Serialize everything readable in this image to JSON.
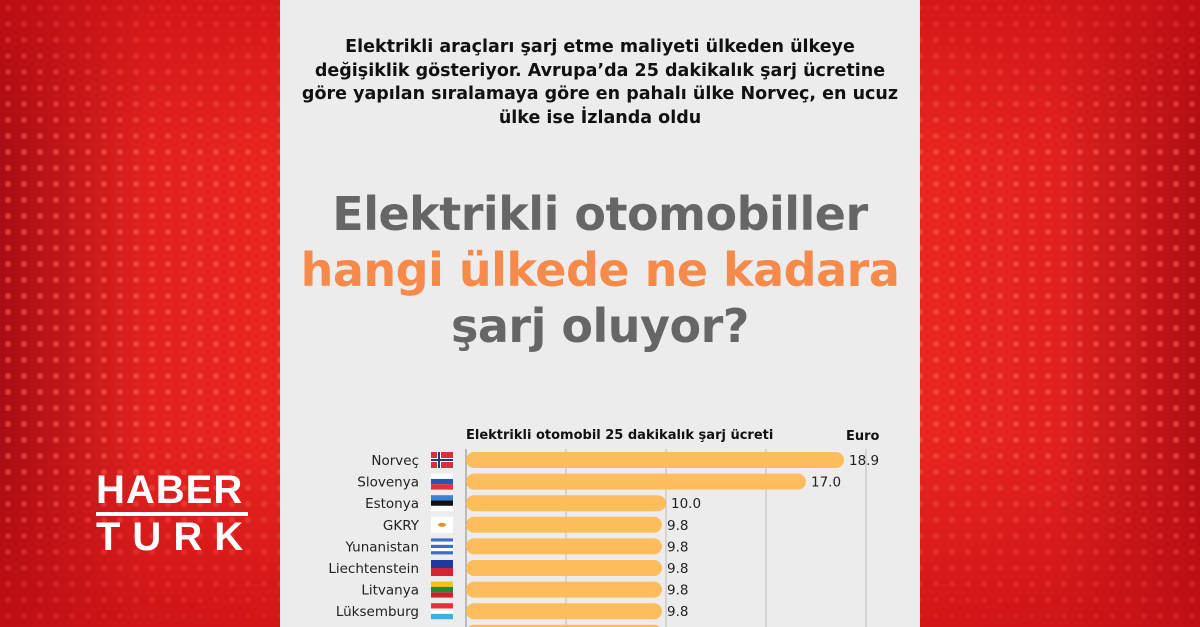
{
  "intro_text": "Elektrikli araçları şarj etme maliyeti ülkeden ülkeye değişiklik gösteriyor. Avrupa’da 25 dakikalık şarj ücretine göre yapılan sıralamaya göre en pahalı ülke Norveç, en ucuz ülke ise İzlanda oldu",
  "headline": {
    "part1": "Elektrikli otomobiller ",
    "highlight": "hangi ülkede ne kadara",
    "part2": " şarj oluyor?"
  },
  "logo": {
    "line1": "HABER",
    "line2": "TURK"
  },
  "colors": {
    "bar": "#fdbd5c",
    "highlight": "#f58a4a",
    "background": "#e8261f",
    "panel": "#ececec"
  },
  "chart_data": {
    "type": "bar",
    "orientation": "horizontal",
    "title": "Elektrikli otomobil 25 dakikalık şarj ücreti",
    "unit": "Euro",
    "categories": [
      "Norveç",
      "Slovenya",
      "Estonya",
      "GKRY",
      "Yunanistan",
      "Liechtenstein",
      "Litvanya",
      "Lüksemburg"
    ],
    "flags": [
      "norway-flag",
      "slovenia-flag",
      "estonia-flag",
      "cyprus-flag",
      "greece-flag",
      "liechtenstein-flag",
      "lithuania-flag",
      "luxembourg-flag"
    ],
    "values": [
      18.9,
      17.0,
      10.0,
      9.8,
      9.8,
      9.8,
      9.8,
      9.8
    ],
    "value_labels": [
      "18.9",
      "17.0",
      "10.0",
      "9.8",
      "9.8",
      "9.8",
      "9.8",
      "9.8"
    ],
    "xlim": [
      0,
      20
    ],
    "gridlines": [
      5,
      10,
      15,
      20
    ],
    "grid": true
  }
}
